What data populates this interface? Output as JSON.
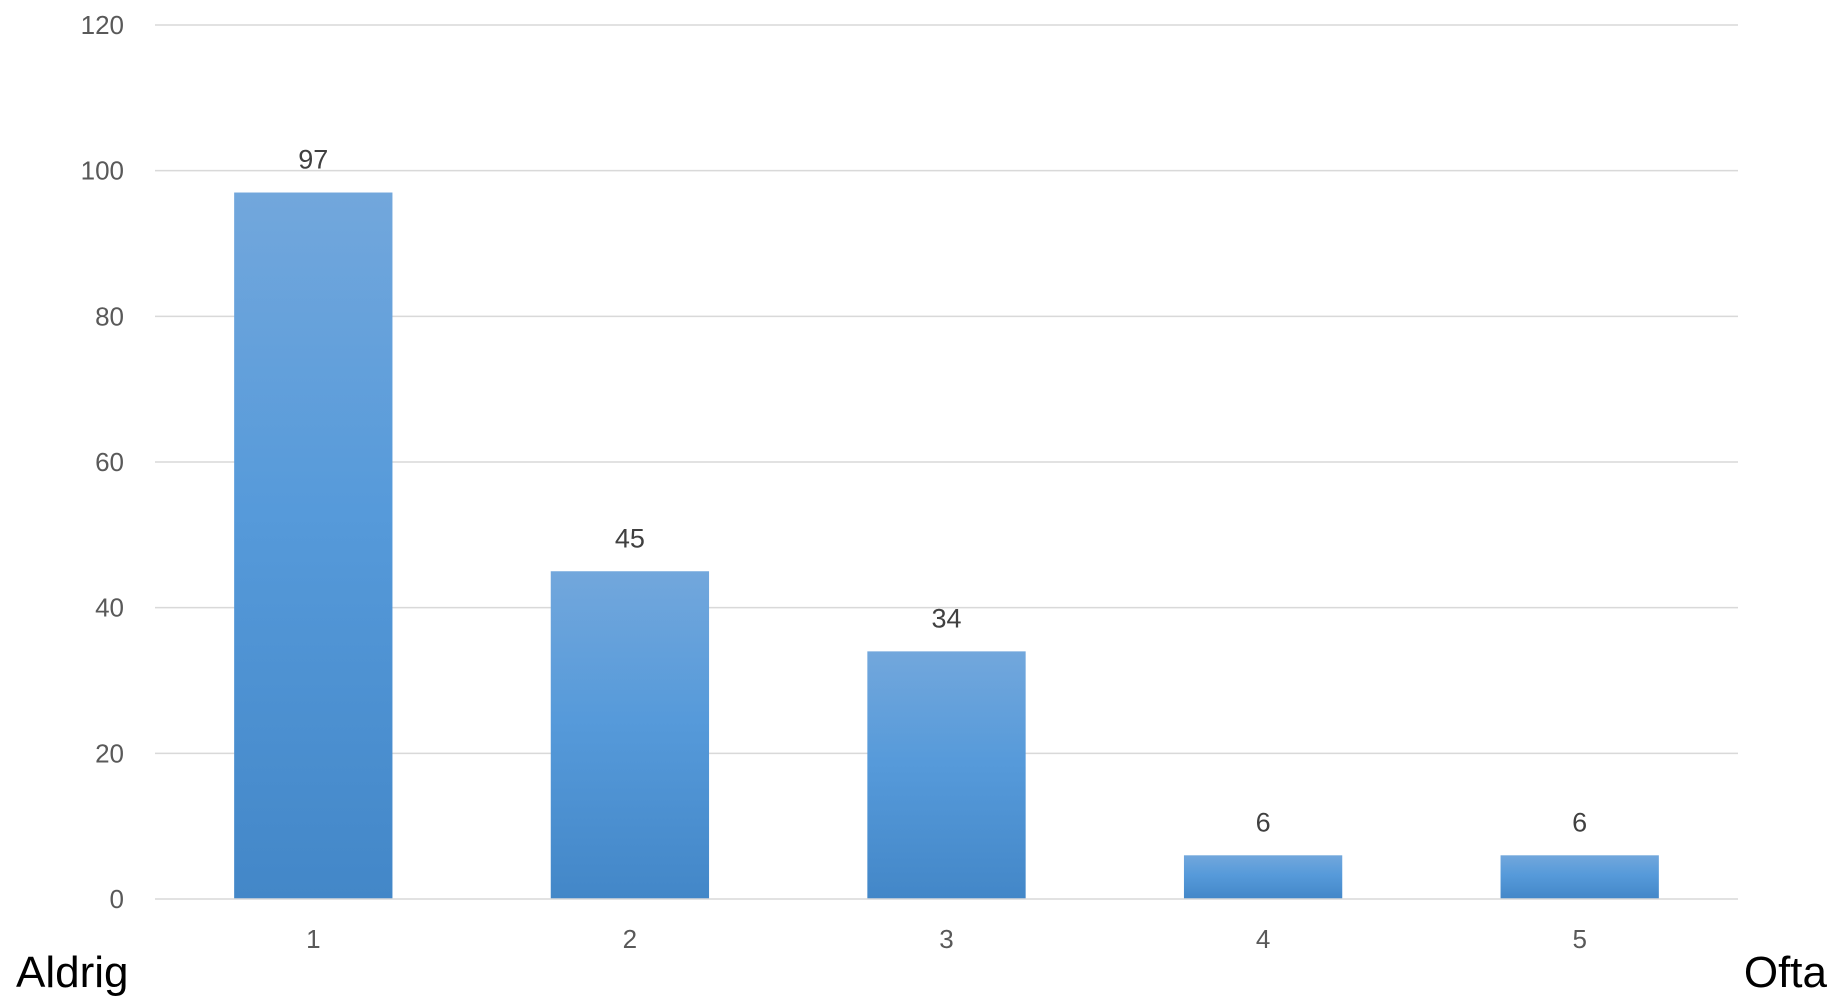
{
  "chart_data": {
    "type": "bar",
    "title": "",
    "xlabel": "",
    "ylabel": "",
    "categories": [
      "1",
      "2",
      "3",
      "4",
      "5"
    ],
    "values": [
      97,
      45,
      34,
      6,
      6
    ],
    "data_labels": [
      "97",
      "45",
      "34",
      "6",
      "6"
    ],
    "ylim": [
      0,
      120
    ],
    "yticks": [
      0,
      20,
      40,
      60,
      80,
      100,
      120
    ],
    "ytick_labels": [
      "0",
      "20",
      "40",
      "60",
      "80",
      "100",
      "120"
    ],
    "grid": true,
    "legend": "none",
    "bar_color_top": "#72a7dc",
    "bar_color_bottom": "#4387c8",
    "scale_labels": {
      "left": "Aldrig",
      "right": "Ofta"
    }
  }
}
